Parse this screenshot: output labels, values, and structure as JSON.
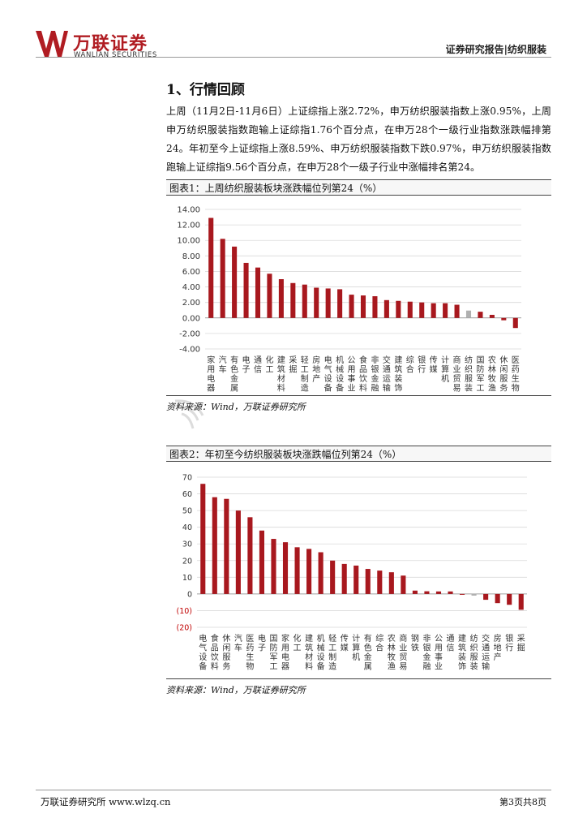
{
  "header": {
    "logo_cn": "万联证券",
    "logo_en": "WANLIAN SECURITIES",
    "report_type": "证券研究报告|纺织服装"
  },
  "section": {
    "title": "1、行情回顾",
    "paragraph": "上周（11月2日-11月6日）上证综指上涨2.72%，申万纺织服装指数上涨0.95%，上周申万纺织服装指数跑输上证综指1.76个百分点，在申万28个一级行业指数涨跌幅排第24。年初至今上证综指上涨8.59%、申万纺织服装指数下跌0.97%，申万纺织服装指数跑输上证综指9.56个百分点，在申万28个一级子行业中涨幅排名第24。"
  },
  "figure1": {
    "title": "图表1：上周纺织服装板块涨跌幅位列第24（%）",
    "source": "资料来源：Wind，万联证券研究所"
  },
  "figure2": {
    "title": "图表2：年初至今纺织服装板块涨跌幅位列第24（%）",
    "source": "资料来源：Wind，万联证券研究所"
  },
  "chart_data": [
    {
      "type": "bar",
      "title": "上周纺织服装板块涨跌幅位列第24（%）",
      "categories": [
        "家用电器",
        "汽车",
        "有色金属",
        "电子",
        "通信",
        "化工",
        "建筑材料",
        "采掘",
        "轻工制造",
        "房地产",
        "电气设备",
        "机械设备",
        "公用事业",
        "食品饮料",
        "非银金融",
        "交通运输",
        "建筑装饰",
        "综合",
        "银行",
        "传媒",
        "计算机",
        "商业贸易",
        "纺织服装",
        "国防军工",
        "农林牧渔",
        "休闲服务",
        "医药生物"
      ],
      "values": [
        12.9,
        10.2,
        9.2,
        7.1,
        6.5,
        5.7,
        5.0,
        4.5,
        4.3,
        3.9,
        3.8,
        3.7,
        3.0,
        2.9,
        2.8,
        2.3,
        2.2,
        2.1,
        2.0,
        1.9,
        1.9,
        1.7,
        0.95,
        0.8,
        0.4,
        -0.3,
        -1.3
      ],
      "highlight": "纺织服装",
      "ylim": [
        -4,
        14
      ],
      "yticks": [
        "14.00",
        "12.00",
        "10.00",
        "8.00",
        "6.00",
        "4.00",
        "2.00",
        "0.00",
        "-2.00",
        "-4.00"
      ],
      "ytick_values": [
        14,
        12,
        10,
        8,
        6,
        4,
        2,
        0,
        -2,
        -4
      ],
      "colors": {
        "bar": "#a8181e",
        "highlight": "#b0b0b0"
      }
    },
    {
      "type": "bar",
      "title": "年初至今纺织服装板块涨跌幅位列第24（%）",
      "categories": [
        "电气设备",
        "食品饮料",
        "休闲服务",
        "汽车",
        "医药生物",
        "电子",
        "国防军工",
        "家用电器",
        "化工",
        "建筑材料",
        "机械设备",
        "轻工制造",
        "传媒",
        "计算机",
        "有色金属",
        "综合",
        "农林牧渔",
        "商业贸易",
        "钢铁",
        "非银金融",
        "公用事业",
        "通信",
        "建筑装饰",
        "纺织服装",
        "交通运输",
        "房地产",
        "银行",
        "采掘"
      ],
      "values": [
        66,
        58,
        57,
        50,
        46,
        38,
        33,
        31,
        28,
        27,
        25,
        20,
        18,
        17,
        15,
        14,
        13,
        11,
        2,
        1.6,
        1.5,
        1.5,
        -0.5,
        -1,
        -3.5,
        -5.5,
        -6.5,
        -9.5
      ],
      "highlight": "纺织服装",
      "ylim": [
        -20,
        70
      ],
      "yticks": [
        "70",
        "60",
        "50",
        "40",
        "30",
        "20",
        "10",
        "0",
        "(10)",
        "(20)"
      ],
      "ytick_values": [
        70,
        60,
        50,
        40,
        30,
        20,
        10,
        0,
        -10,
        -20
      ],
      "colors": {
        "bar": "#a8181e",
        "highlight": "#b0b0b0",
        "neg_tick": "#c00000"
      }
    }
  ],
  "footer": {
    "left": "万联证券研究所 www.wlzq.cn",
    "right": "第3页共8页"
  }
}
